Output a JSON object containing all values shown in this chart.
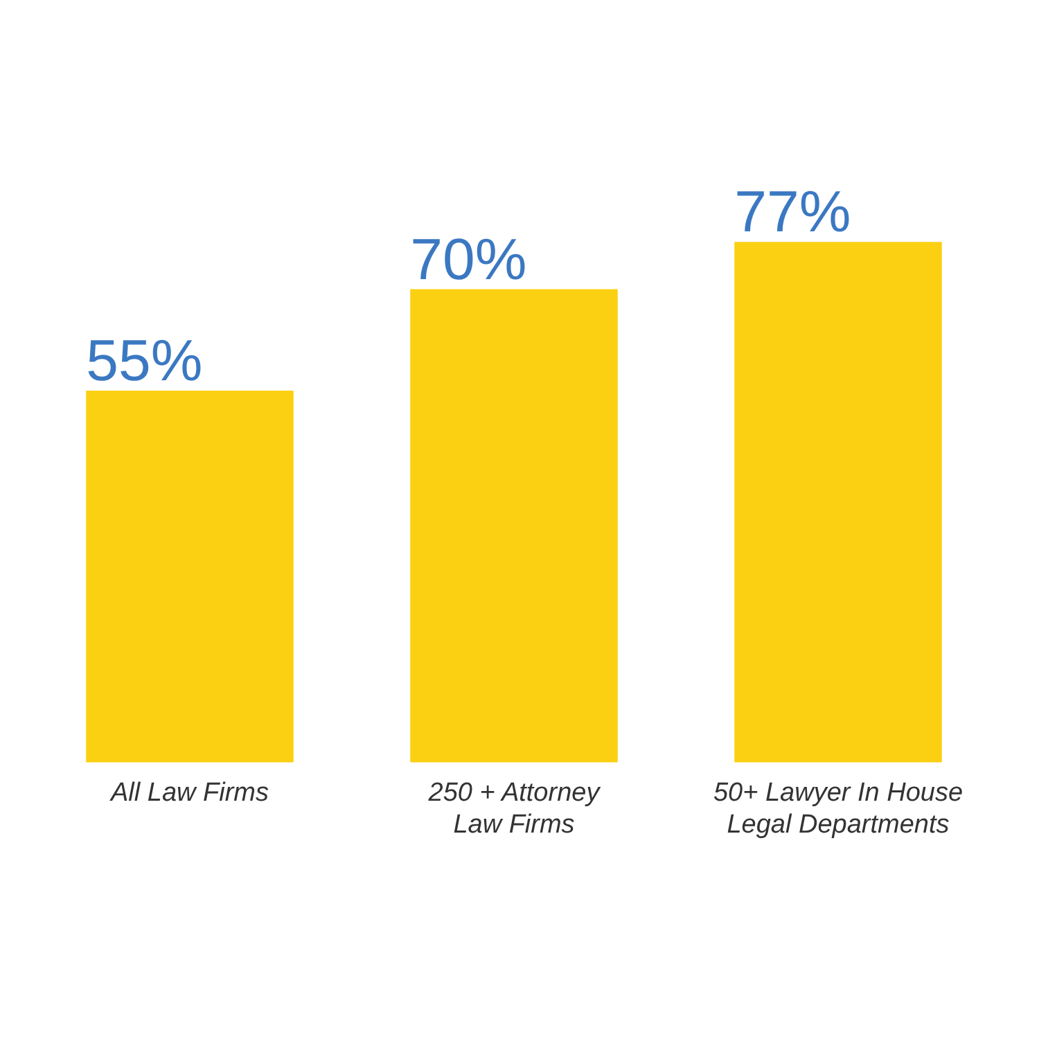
{
  "chart_data": {
    "type": "bar",
    "categories": [
      "All Law Firms",
      "250 + Attorney\nLaw Firms",
      "50+ Lawyer In House\nLegal Departments"
    ],
    "values": [
      55,
      70,
      77
    ],
    "color": "#fcd012",
    "value_labels": [
      "55%",
      "70%",
      "77%"
    ],
    "tick_labels": "x",
    "grid": false,
    "legend": false
  }
}
